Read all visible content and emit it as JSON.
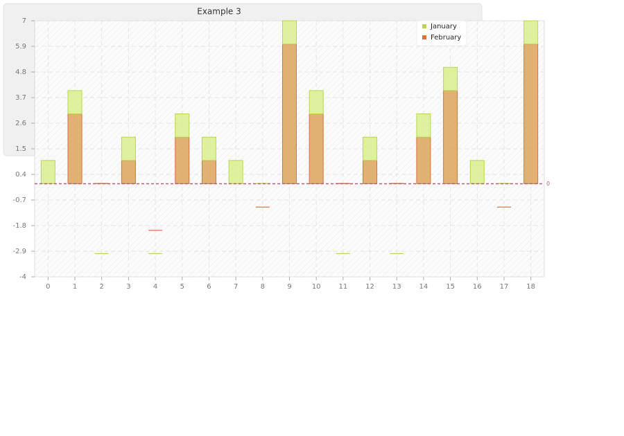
{
  "chart_data": {
    "type": "stacked-bar",
    "title": "Example 3",
    "categories": [
      "0",
      "1",
      "2",
      "3",
      "4",
      "5",
      "6",
      "7",
      "8",
      "9",
      "10",
      "11",
      "12",
      "13",
      "14",
      "15",
      "16",
      "17",
      "18"
    ],
    "series": [
      {
        "name": "January",
        "color": "#b5d94a",
        "values": [
          1,
          1,
          -3,
          1,
          -1,
          1,
          1,
          1,
          0,
          1,
          1,
          -3,
          1,
          -3,
          1,
          1,
          1,
          0,
          1
        ]
      },
      {
        "name": "February",
        "color": "#d9703f",
        "values": [
          0,
          3,
          0,
          1,
          -2,
          2,
          1,
          0,
          -1,
          6,
          3,
          0,
          1,
          0,
          2,
          4,
          0,
          -1,
          6
        ]
      }
    ],
    "ylim": [
      -4,
      7
    ],
    "yticks": [
      7,
      5.9,
      4.8,
      3.7,
      2.6,
      1.5,
      0.4,
      -0.7,
      -1.8,
      -2.9,
      -4
    ],
    "reference_line": 0,
    "grid": true,
    "legend": "top-right"
  }
}
